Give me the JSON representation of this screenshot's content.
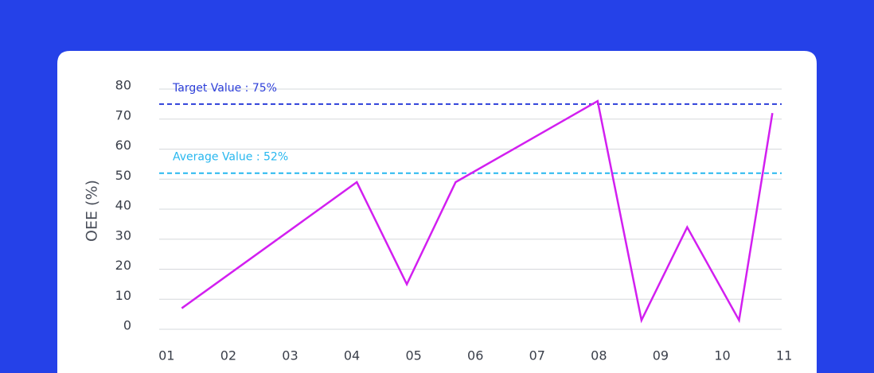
{
  "chart_data": {
    "type": "line",
    "ylabel": "OEE (%)",
    "x": [
      1.245,
      4.08,
      4.89,
      5.68,
      7.98,
      8.69,
      9.43,
      10.27,
      10.81
    ],
    "values": [
      7,
      49,
      15,
      49,
      76,
      3,
      34,
      3,
      72
    ],
    "color": "#d21ff0",
    "xlim": [
      0.88,
      10.96
    ],
    "xticks": [
      {
        "value": 1,
        "label": "01"
      },
      {
        "value": 2,
        "label": "02"
      },
      {
        "value": 3,
        "label": "03"
      },
      {
        "value": 4,
        "label": "04"
      },
      {
        "value": 5,
        "label": "05"
      },
      {
        "value": 6,
        "label": "06"
      },
      {
        "value": 7,
        "label": "07"
      },
      {
        "value": 8,
        "label": "08"
      },
      {
        "value": 9,
        "label": "09"
      },
      {
        "value": 10,
        "label": "10"
      },
      {
        "value": 11,
        "label": "11"
      }
    ],
    "ylim": [
      0,
      80
    ],
    "yticks": [
      0,
      10,
      20,
      30,
      40,
      50,
      60,
      70,
      80
    ],
    "grid": true,
    "reference_lines": [
      {
        "label": "Target Value : 75%",
        "value": 75,
        "color": "#2d3fd9"
      },
      {
        "label": "Average Value : 52%",
        "value": 52,
        "color": "#27b7ef"
      }
    ]
  }
}
